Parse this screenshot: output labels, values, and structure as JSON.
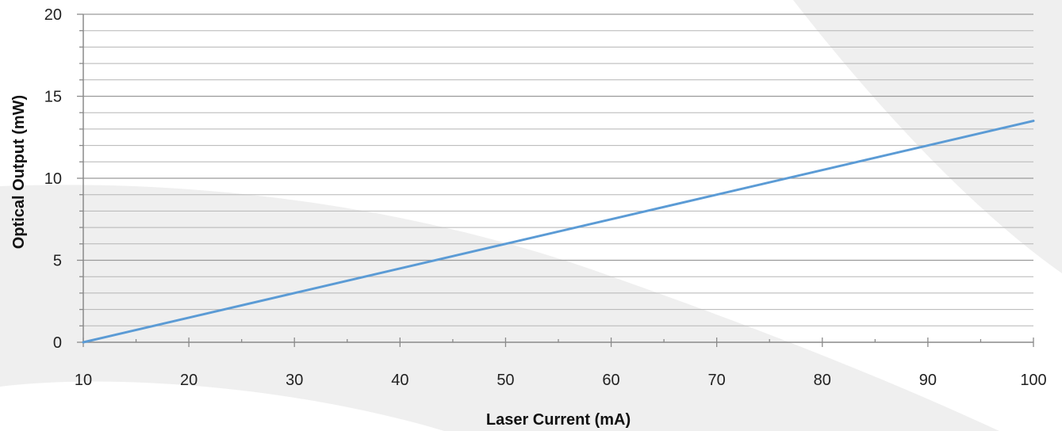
{
  "chart_data": {
    "type": "line",
    "title": "",
    "xlabel": "Laser Current (mA)",
    "ylabel": "Optical Output (mW)",
    "xlim": [
      10,
      100
    ],
    "ylim": [
      0,
      20
    ],
    "x_ticks": [
      10,
      20,
      30,
      40,
      50,
      60,
      70,
      80,
      90,
      100
    ],
    "y_ticks": [
      0,
      5,
      10,
      15,
      20
    ],
    "grid": true,
    "legend": "none",
    "colors": {
      "line": "#5b9bd5",
      "grid": "#b5b5b5",
      "axis": "#8a8a8a",
      "background_shape": "#efefef"
    },
    "series": [
      {
        "x": [
          10,
          100
        ],
        "y": [
          0,
          13.5
        ]
      }
    ]
  }
}
